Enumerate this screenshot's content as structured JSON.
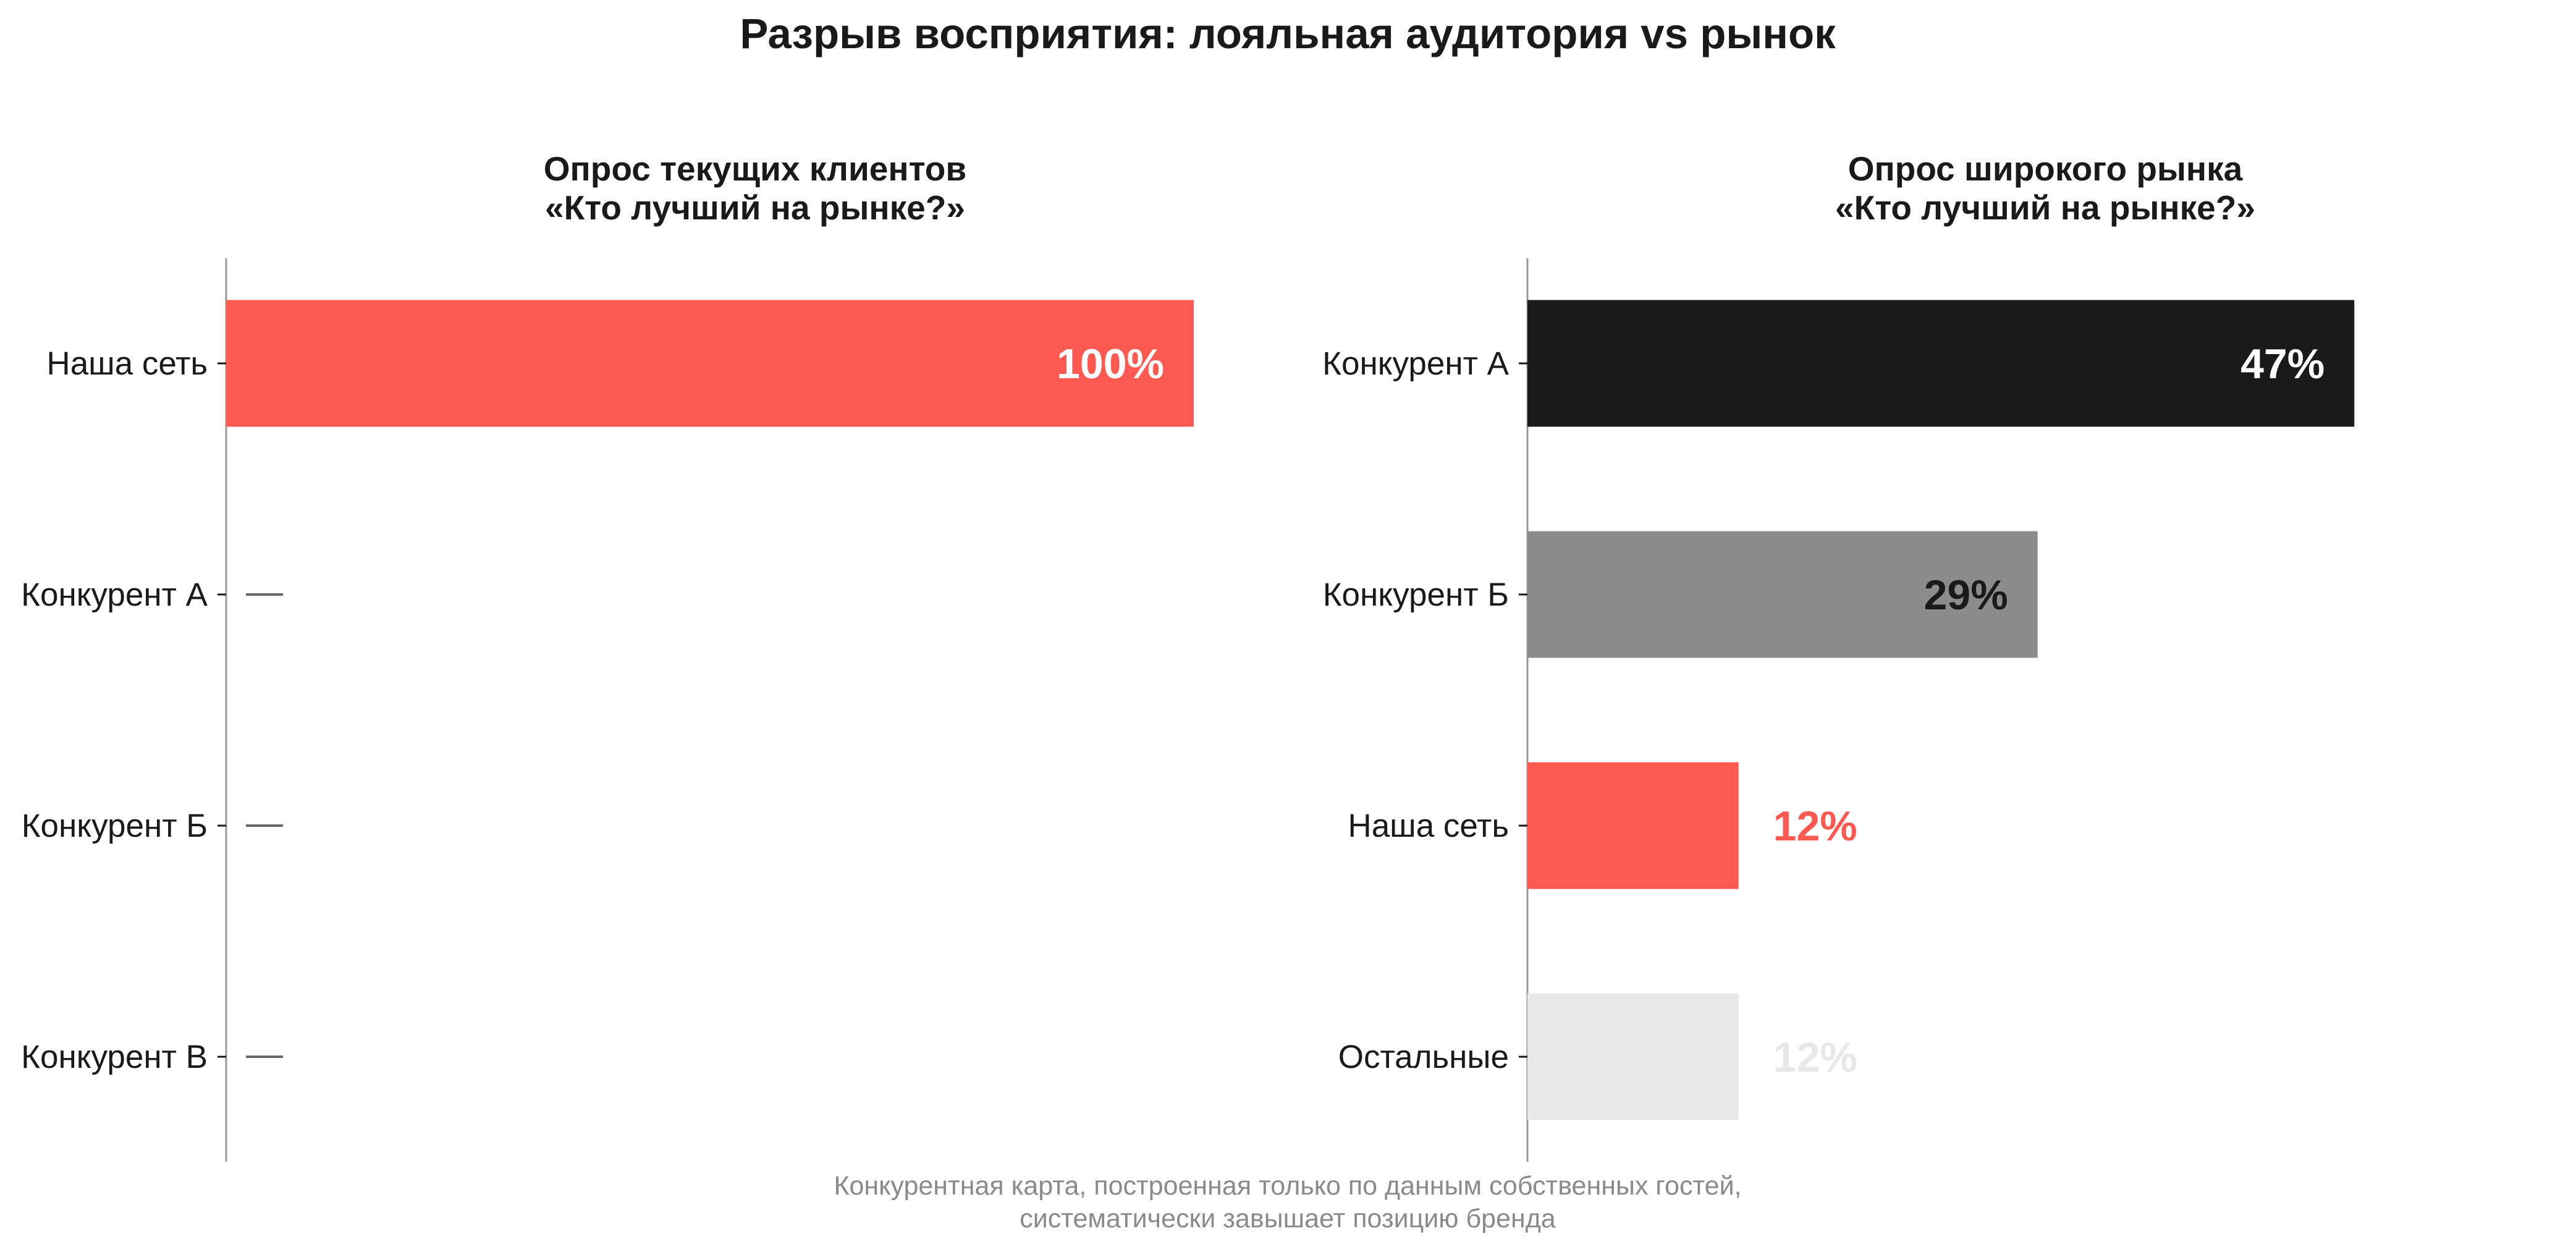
{
  "title": "Разрыв восприятия: лояльная аудитория vs рынок",
  "footnote": {
    "line1": "Конкурентная карта, построенная только по данным собственных гостей,",
    "line2": "систематически завышает позицию бренда"
  },
  "colors": {
    "brand": "#ff5a52",
    "competitor_a": "#1a1a1a",
    "competitor_b": "#8c8c8c",
    "other": "#e8e8e8",
    "axis": "#9a9a9a",
    "dash": "#666666"
  },
  "chart_data": [
    {
      "type": "bar",
      "orientation": "horizontal",
      "title_line1": "Опрос текущих клиентов",
      "title_line2": "«Кто лучший на рынке?»",
      "xlim": [
        0,
        100
      ],
      "categories": [
        "Наша сеть",
        "Конкурент А",
        "Конкурент Б",
        "Конкурент В"
      ],
      "values": [
        100,
        null,
        null,
        null
      ],
      "labels": [
        "100%",
        "",
        "",
        ""
      ],
      "bar_colors": [
        "brand",
        "",
        "",
        ""
      ],
      "label_colors": [
        "#ffffff",
        "",
        "",
        ""
      ],
      "label_inside": [
        true,
        false,
        false,
        false
      ],
      "missing_marker": "—"
    },
    {
      "type": "bar",
      "orientation": "horizontal",
      "title_line1": "Опрос широкого рынка",
      "title_line2": "«Кто лучший на рынке?»",
      "xlim": [
        0,
        55
      ],
      "categories": [
        "Конкурент А",
        "Конкурент Б",
        "Наша сеть",
        "Остальные"
      ],
      "values": [
        47,
        29,
        12,
        12
      ],
      "labels": [
        "47%",
        "29%",
        "12%",
        "12%"
      ],
      "bar_colors": [
        "competitor_a",
        "competitor_b",
        "brand",
        "other"
      ],
      "label_colors": [
        "#ffffff",
        "#1a1a1a",
        "#ff5a52",
        "#e8e8e8"
      ],
      "label_inside": [
        true,
        true,
        false,
        false
      ]
    }
  ]
}
